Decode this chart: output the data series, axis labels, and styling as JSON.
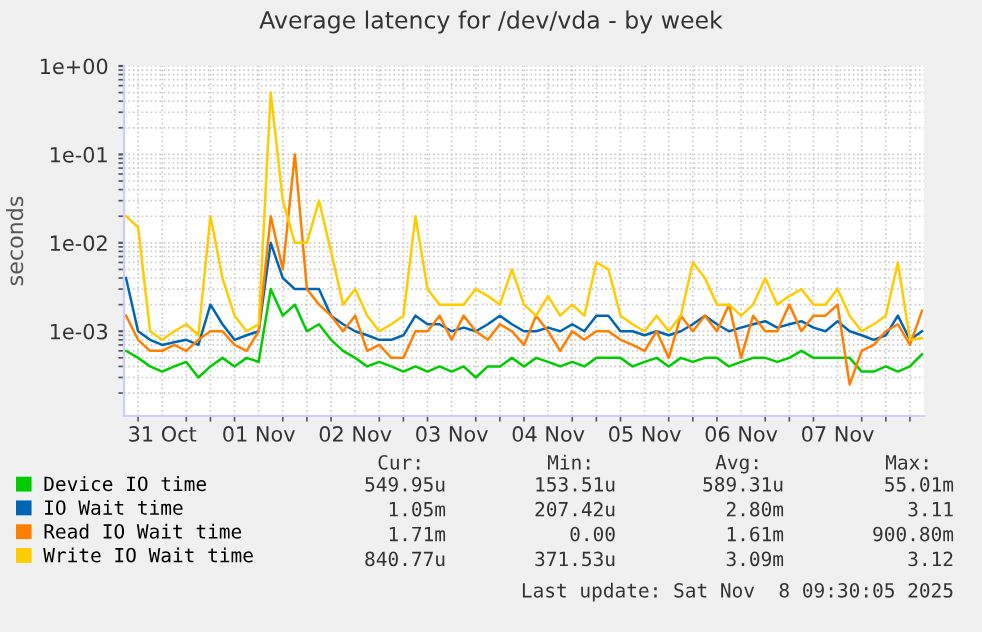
{
  "chart_data": {
    "type": "line",
    "title": "Average latency for /dev/vda - by week",
    "ylabel": "seconds",
    "log": "y",
    "grid": true,
    "legend": "bottom",
    "marker": "none",
    "line_style": "solid",
    "xlim": [
      "2025-10-31T02:30",
      "2025-11-08T09:30"
    ],
    "xticks": [
      {
        "value": "2025-10-31T12:00",
        "label": "31 Oct"
      },
      {
        "value": "2025-11-01T12:00",
        "label": "01 Nov"
      },
      {
        "value": "2025-11-02T12:00",
        "label": "02 Nov"
      },
      {
        "value": "2025-11-03T12:00",
        "label": "03 Nov"
      },
      {
        "value": "2025-11-04T12:00",
        "label": "04 Nov"
      },
      {
        "value": "2025-11-05T12:00",
        "label": "05 Nov"
      },
      {
        "value": "2025-11-06T12:00",
        "label": "06 Nov"
      },
      {
        "value": "2025-11-07T12:00",
        "label": "07 Nov"
      }
    ],
    "ylim": [
      0.00011,
      1
    ],
    "yticks": [
      {
        "value": 0.001,
        "label": "1e-03"
      },
      {
        "value": 0.01,
        "label": "1e-02"
      },
      {
        "value": 0.1,
        "label": "1e-01"
      },
      {
        "value": 1,
        "label": "1e+00"
      }
    ],
    "x": [
      "2025-10-31T03:00",
      "2025-10-31T06:00",
      "2025-10-31T09:00",
      "2025-10-31T12:00",
      "2025-10-31T15:00",
      "2025-10-31T18:00",
      "2025-10-31T21:00",
      "2025-11-01T00:00",
      "2025-11-01T03:00",
      "2025-11-01T06:00",
      "2025-11-01T09:00",
      "2025-11-01T12:00",
      "2025-11-01T15:00",
      "2025-11-01T18:00",
      "2025-11-01T21:00",
      "2025-11-02T00:00",
      "2025-11-02T03:00",
      "2025-11-02T06:00",
      "2025-11-02T09:00",
      "2025-11-02T12:00",
      "2025-11-02T15:00",
      "2025-11-02T18:00",
      "2025-11-02T21:00",
      "2025-11-03T00:00",
      "2025-11-03T03:00",
      "2025-11-03T06:00",
      "2025-11-03T09:00",
      "2025-11-03T12:00",
      "2025-11-03T15:00",
      "2025-11-03T18:00",
      "2025-11-03T21:00",
      "2025-11-04T00:00",
      "2025-11-04T03:00",
      "2025-11-04T06:00",
      "2025-11-04T09:00",
      "2025-11-04T12:00",
      "2025-11-04T15:00",
      "2025-11-04T18:00",
      "2025-11-04T21:00",
      "2025-11-05T00:00",
      "2025-11-05T03:00",
      "2025-11-05T06:00",
      "2025-11-05T09:00",
      "2025-11-05T12:00",
      "2025-11-05T15:00",
      "2025-11-05T18:00",
      "2025-11-05T21:00",
      "2025-11-06T00:00",
      "2025-11-06T03:00",
      "2025-11-06T06:00",
      "2025-11-06T09:00",
      "2025-11-06T12:00",
      "2025-11-06T15:00",
      "2025-11-06T18:00",
      "2025-11-06T21:00",
      "2025-11-07T00:00",
      "2025-11-07T03:00",
      "2025-11-07T06:00",
      "2025-11-07T09:00",
      "2025-11-07T12:00",
      "2025-11-07T15:00",
      "2025-11-07T18:00",
      "2025-11-07T21:00",
      "2025-11-08T00:00",
      "2025-11-08T03:00",
      "2025-11-08T06:00",
      "2025-11-08T09:00"
    ],
    "series": [
      {
        "name": "Device IO time",
        "color": "#00cc00",
        "values": [
          0.0006,
          0.0005,
          0.0004,
          0.00035,
          0.0004,
          0.00045,
          0.0003,
          0.0004,
          0.0005,
          0.0004,
          0.0005,
          0.00045,
          0.003,
          0.0015,
          0.002,
          0.001,
          0.0012,
          0.0008,
          0.0006,
          0.0005,
          0.0004,
          0.00045,
          0.0004,
          0.00035,
          0.0004,
          0.00035,
          0.0004,
          0.00035,
          0.0004,
          0.0003,
          0.0004,
          0.0004,
          0.0005,
          0.0004,
          0.0005,
          0.00045,
          0.0004,
          0.00045,
          0.0004,
          0.0005,
          0.0005,
          0.0005,
          0.0004,
          0.00045,
          0.0005,
          0.0004,
          0.0005,
          0.00045,
          0.0005,
          0.0005,
          0.0004,
          0.00045,
          0.0005,
          0.0005,
          0.00045,
          0.0005,
          0.0006,
          0.0005,
          0.0005,
          0.0005,
          0.0005,
          0.00035,
          0.00035,
          0.0004,
          0.00035,
          0.0004,
          0.00055
        ]
      },
      {
        "name": "IO Wait time",
        "color": "#0066b3",
        "values": [
          0.004,
          0.001,
          0.0008,
          0.0007,
          0.00075,
          0.0008,
          0.0007,
          0.002,
          0.0012,
          0.0008,
          0.0009,
          0.001,
          0.01,
          0.004,
          0.003,
          0.003,
          0.003,
          0.0015,
          0.0012,
          0.001,
          0.0009,
          0.0008,
          0.0008,
          0.0009,
          0.0015,
          0.0012,
          0.0012,
          0.001,
          0.0011,
          0.001,
          0.0012,
          0.0015,
          0.0012,
          0.001,
          0.001,
          0.0011,
          0.001,
          0.0012,
          0.001,
          0.0015,
          0.0015,
          0.001,
          0.001,
          0.0009,
          0.001,
          0.0009,
          0.001,
          0.0012,
          0.0015,
          0.0012,
          0.001,
          0.0011,
          0.0012,
          0.0013,
          0.0011,
          0.0012,
          0.0013,
          0.0011,
          0.001,
          0.0013,
          0.001,
          0.0009,
          0.0008,
          0.0009,
          0.0015,
          0.0008,
          0.001
        ]
      },
      {
        "name": "Read IO Wait time",
        "color": "#ff8000",
        "values": [
          0.0015,
          0.0008,
          0.0006,
          0.0006,
          0.0007,
          0.0006,
          0.0008,
          0.001,
          0.001,
          0.0007,
          0.0006,
          0.001,
          0.02,
          0.005,
          0.1,
          0.003,
          0.002,
          0.0015,
          0.001,
          0.0015,
          0.0006,
          0.0007,
          0.0005,
          0.0005,
          0.001,
          0.001,
          0.0015,
          0.0008,
          0.0015,
          0.001,
          0.0008,
          0.0012,
          0.001,
          0.0007,
          0.0015,
          0.001,
          0.0006,
          0.001,
          0.0008,
          0.001,
          0.001,
          0.0008,
          0.0007,
          0.0006,
          0.001,
          0.0005,
          0.0015,
          0.001,
          0.0015,
          0.001,
          0.002,
          0.0005,
          0.0015,
          0.001,
          0.001,
          0.002,
          0.001,
          0.0015,
          0.0015,
          0.002,
          0.00025,
          0.0006,
          0.0007,
          0.001,
          0.0012,
          0.0007,
          0.0017
        ]
      },
      {
        "name": "Write IO Wait time",
        "color": "#ffcc00",
        "values": [
          0.02,
          0.015,
          0.001,
          0.0008,
          0.001,
          0.0012,
          0.0009,
          0.02,
          0.004,
          0.0015,
          0.001,
          0.0012,
          0.5,
          0.03,
          0.01,
          0.01,
          0.03,
          0.008,
          0.002,
          0.003,
          0.0015,
          0.001,
          0.0012,
          0.0015,
          0.02,
          0.003,
          0.002,
          0.002,
          0.002,
          0.003,
          0.0025,
          0.002,
          0.005,
          0.002,
          0.0015,
          0.0025,
          0.0015,
          0.002,
          0.0015,
          0.006,
          0.005,
          0.0015,
          0.0012,
          0.001,
          0.0015,
          0.001,
          0.0015,
          0.006,
          0.004,
          0.002,
          0.002,
          0.0015,
          0.002,
          0.004,
          0.002,
          0.0025,
          0.003,
          0.002,
          0.002,
          0.003,
          0.0015,
          0.001,
          0.0012,
          0.0015,
          0.006,
          0.0008,
          0.00084
        ]
      }
    ],
    "annotations": [
      "Cur:",
      "Min:",
      "Avg:",
      "Max:",
      "549.95u",
      "153.51u",
      "589.31u",
      "55.01m",
      "1.05m",
      "207.42u",
      "2.80m",
      "3.11",
      "1.71m",
      "0.00",
      "1.61m",
      "900.80m",
      "840.77u",
      "371.53u",
      "3.09m",
      "3.12",
      "Last update: Sat Nov  8 09:30:05 2025"
    ]
  }
}
